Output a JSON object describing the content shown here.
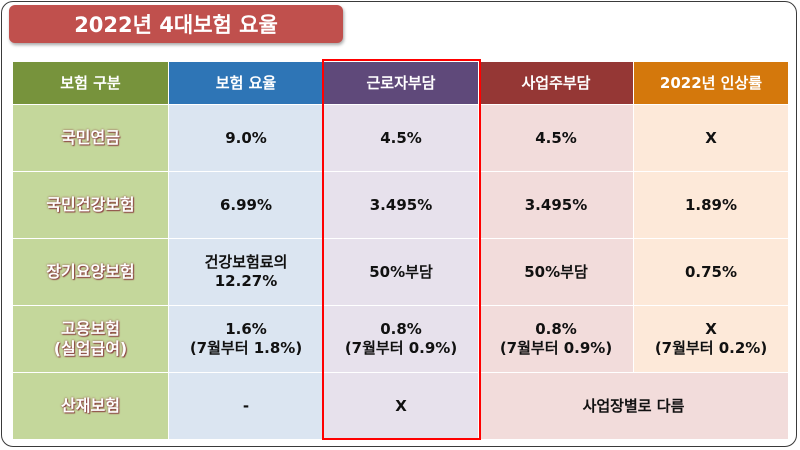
{
  "title": "2022년 4대보험 요율",
  "headers": [
    "보험 구분",
    "보험 요율",
    "근로자부담",
    "사업주부담",
    "2022년 인상률"
  ],
  "rows": [
    {
      "name": [
        "국민연금"
      ],
      "rate": [
        "9.0%"
      ],
      "worker": [
        "4.5%"
      ],
      "employer": [
        "4.5%"
      ],
      "increase": [
        "X"
      ]
    },
    {
      "name": [
        "국민건강보험"
      ],
      "rate": [
        "6.99%"
      ],
      "worker": [
        "3.495%"
      ],
      "employer": [
        "3.495%"
      ],
      "increase": [
        "1.89%"
      ]
    },
    {
      "name": [
        "장기요양보험"
      ],
      "rate": [
        "건강보험료의",
        "12.27%"
      ],
      "worker": [
        "50%부담"
      ],
      "employer": [
        "50%부담"
      ],
      "increase": [
        "0.75%"
      ]
    },
    {
      "name": [
        "고용보험",
        "(실업급여)"
      ],
      "rate": [
        "1.6%",
        "(7월부터 1.8%)"
      ],
      "worker": [
        "0.8%",
        "(7월부터 0.9%)"
      ],
      "employer": [
        "0.8%",
        "(7월부터 0.9%)"
      ],
      "increase": [
        "X",
        "(7월부터 0.2%)"
      ]
    },
    {
      "name": [
        "산재보험"
      ],
      "rate": [
        "-"
      ],
      "worker": [
        "X"
      ],
      "employer_merged": "사업장별로 다름"
    }
  ],
  "colors": {
    "title_bg": "#c0504d",
    "header": [
      "#77933c",
      "#2e75b6",
      "#5f497a",
      "#953735",
      "#d4780c"
    ],
    "body": [
      "#c4d79b",
      "#dbe5f1",
      "#e7e1ec",
      "#f2dcdb",
      "#fde9d9"
    ],
    "highlight_border": "#ff0000"
  }
}
